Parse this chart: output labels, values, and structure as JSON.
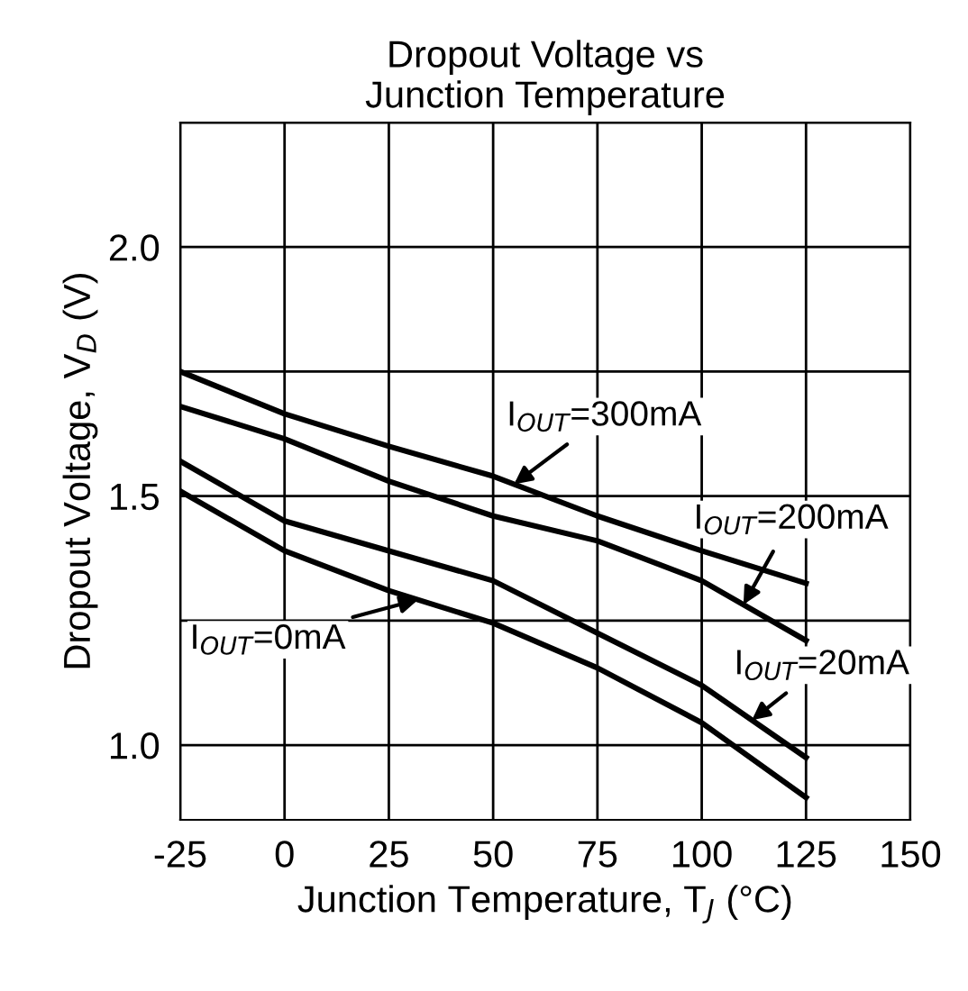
{
  "chart_data": {
    "type": "line",
    "title": "Dropout Voltage vs\nJunction Temperature",
    "xlabel": "Junction Temperature, T$_{J}$ (°C)",
    "ylabel": "Dropout Voltage, V$_{D}$ (V)",
    "xlim": [
      -25,
      150
    ],
    "xticks": [
      -25,
      0,
      25,
      50,
      75,
      100,
      125,
      150
    ],
    "ylim": [
      0.85,
      2.25
    ],
    "yticks": [
      {
        "value": 1.0,
        "label": "1.0"
      },
      {
        "value": 1.25,
        "label": null
      },
      1.5,
      {
        "value": 1.75,
        "label": null
      },
      {
        "value": 2.0,
        "label": "2.0"
      },
      {
        "value": 2.25,
        "label": null
      }
    ],
    "grid": true,
    "line_style": "solid",
    "marker": "none",
    "x": [
      -25,
      0,
      25,
      50,
      75,
      100,
      125
    ],
    "series": [
      {
        "color": "#000000",
        "values": [
          1.75,
          1.665,
          1.6,
          1.54,
          1.46,
          1.39,
          1.325
        ]
      },
      {
        "color": "#000000",
        "values": [
          1.68,
          1.615,
          1.53,
          1.46,
          1.41,
          1.33,
          1.21
        ]
      },
      {
        "color": "#000000",
        "values": [
          1.57,
          1.45,
          1.39,
          1.33,
          1.225,
          1.12,
          0.975
        ]
      },
      {
        "color": "#000000",
        "values": [
          1.51,
          1.39,
          1.31,
          1.245,
          1.155,
          1.045,
          0.895
        ]
      }
    ],
    "annotations": [
      {
        "text": "I$_{OUT}$=300mA",
        "x": 55,
        "y": 1.524
      },
      {
        "text": "I$_{OUT}$=200mA",
        "x": 110,
        "y": 1.282
      },
      {
        "text": "I$_{OUT}$=20mA",
        "x": 112,
        "y": 1.05
      },
      {
        "text": "I$_{OUT}$=0mA",
        "x": 32,
        "y": 1.292
      }
    ]
  }
}
